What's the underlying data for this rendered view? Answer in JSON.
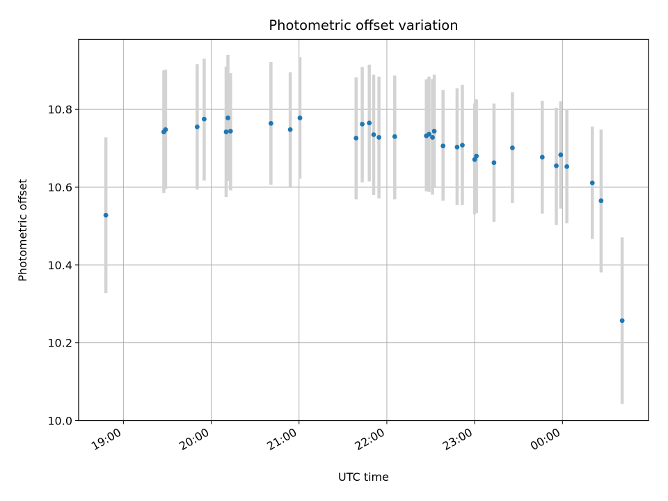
{
  "chart_data": {
    "type": "scatter",
    "title": "Photometric offset variation",
    "xlabel": "UTC time",
    "ylabel": "Photometric offset",
    "x_unit": "hours (UTC, continuing past midnight)",
    "xlim": [
      18.49,
      24.98
    ],
    "ylim": [
      10.0,
      10.98
    ],
    "x_ticks": [
      {
        "value": 19,
        "label": "19:00"
      },
      {
        "value": 20,
        "label": "20:00"
      },
      {
        "value": 21,
        "label": "21:00"
      },
      {
        "value": 22,
        "label": "22:00"
      },
      {
        "value": 23,
        "label": "23:00"
      },
      {
        "value": 24,
        "label": "00:00"
      }
    ],
    "y_ticks": [
      {
        "value": 10.0,
        "label": "10.0"
      },
      {
        "value": 10.2,
        "label": "10.2"
      },
      {
        "value": 10.4,
        "label": "10.4"
      },
      {
        "value": 10.6,
        "label": "10.6"
      },
      {
        "value": 10.8,
        "label": "10.8"
      }
    ],
    "grid": true,
    "colors": {
      "point": "#1f77b4",
      "errorbar": "#d3d3d3"
    },
    "series": [
      {
        "points": [
          {
            "x": 18.8,
            "y": 10.528,
            "lo": 10.328,
            "hi": 10.728
          },
          {
            "x": 19.46,
            "y": 10.742,
            "lo": 10.585,
            "hi": 10.9
          },
          {
            "x": 19.48,
            "y": 10.748,
            "lo": 10.595,
            "hi": 10.902
          },
          {
            "x": 19.84,
            "y": 10.755,
            "lo": 10.594,
            "hi": 10.916
          },
          {
            "x": 19.92,
            "y": 10.775,
            "lo": 10.617,
            "hi": 10.93
          },
          {
            "x": 20.17,
            "y": 10.742,
            "lo": 10.575,
            "hi": 10.91
          },
          {
            "x": 20.19,
            "y": 10.778,
            "lo": 10.616,
            "hi": 10.94
          },
          {
            "x": 20.22,
            "y": 10.744,
            "lo": 10.592,
            "hi": 10.893
          },
          {
            "x": 20.68,
            "y": 10.764,
            "lo": 10.606,
            "hi": 10.922
          },
          {
            "x": 20.9,
            "y": 10.748,
            "lo": 10.601,
            "hi": 10.895
          },
          {
            "x": 21.01,
            "y": 10.778,
            "lo": 10.622,
            "hi": 10.934
          },
          {
            "x": 21.65,
            "y": 10.726,
            "lo": 10.569,
            "hi": 10.882
          },
          {
            "x": 21.72,
            "y": 10.762,
            "lo": 10.612,
            "hi": 10.909
          },
          {
            "x": 21.8,
            "y": 10.765,
            "lo": 10.615,
            "hi": 10.915
          },
          {
            "x": 21.85,
            "y": 10.735,
            "lo": 10.58,
            "hi": 10.889
          },
          {
            "x": 21.91,
            "y": 10.728,
            "lo": 10.571,
            "hi": 10.884
          },
          {
            "x": 22.09,
            "y": 10.73,
            "lo": 10.569,
            "hi": 10.887
          },
          {
            "x": 22.45,
            "y": 10.732,
            "lo": 10.589,
            "hi": 10.877
          },
          {
            "x": 22.48,
            "y": 10.736,
            "lo": 10.588,
            "hi": 10.884
          },
          {
            "x": 22.52,
            "y": 10.728,
            "lo": 10.581,
            "hi": 10.878
          },
          {
            "x": 22.54,
            "y": 10.744,
            "lo": 10.598,
            "hi": 10.889
          },
          {
            "x": 22.64,
            "y": 10.706,
            "lo": 10.565,
            "hi": 10.85
          },
          {
            "x": 22.8,
            "y": 10.703,
            "lo": 10.554,
            "hi": 10.854
          },
          {
            "x": 22.86,
            "y": 10.708,
            "lo": 10.554,
            "hi": 10.863
          },
          {
            "x": 23.0,
            "y": 10.671,
            "lo": 10.53,
            "hi": 10.815
          },
          {
            "x": 23.02,
            "y": 10.68,
            "lo": 10.534,
            "hi": 10.826
          },
          {
            "x": 23.22,
            "y": 10.663,
            "lo": 10.511,
            "hi": 10.815
          },
          {
            "x": 23.43,
            "y": 10.701,
            "lo": 10.559,
            "hi": 10.844
          },
          {
            "x": 23.77,
            "y": 10.677,
            "lo": 10.532,
            "hi": 10.822
          },
          {
            "x": 23.93,
            "y": 10.655,
            "lo": 10.503,
            "hi": 10.804
          },
          {
            "x": 23.98,
            "y": 10.683,
            "lo": 10.545,
            "hi": 10.821
          },
          {
            "x": 24.05,
            "y": 10.653,
            "lo": 10.507,
            "hi": 10.801
          },
          {
            "x": 24.34,
            "y": 10.611,
            "lo": 10.467,
            "hi": 10.756
          },
          {
            "x": 24.44,
            "y": 10.565,
            "lo": 10.381,
            "hi": 10.748
          },
          {
            "x": 24.68,
            "y": 10.257,
            "lo": 10.043,
            "hi": 10.471
          }
        ]
      }
    ]
  }
}
